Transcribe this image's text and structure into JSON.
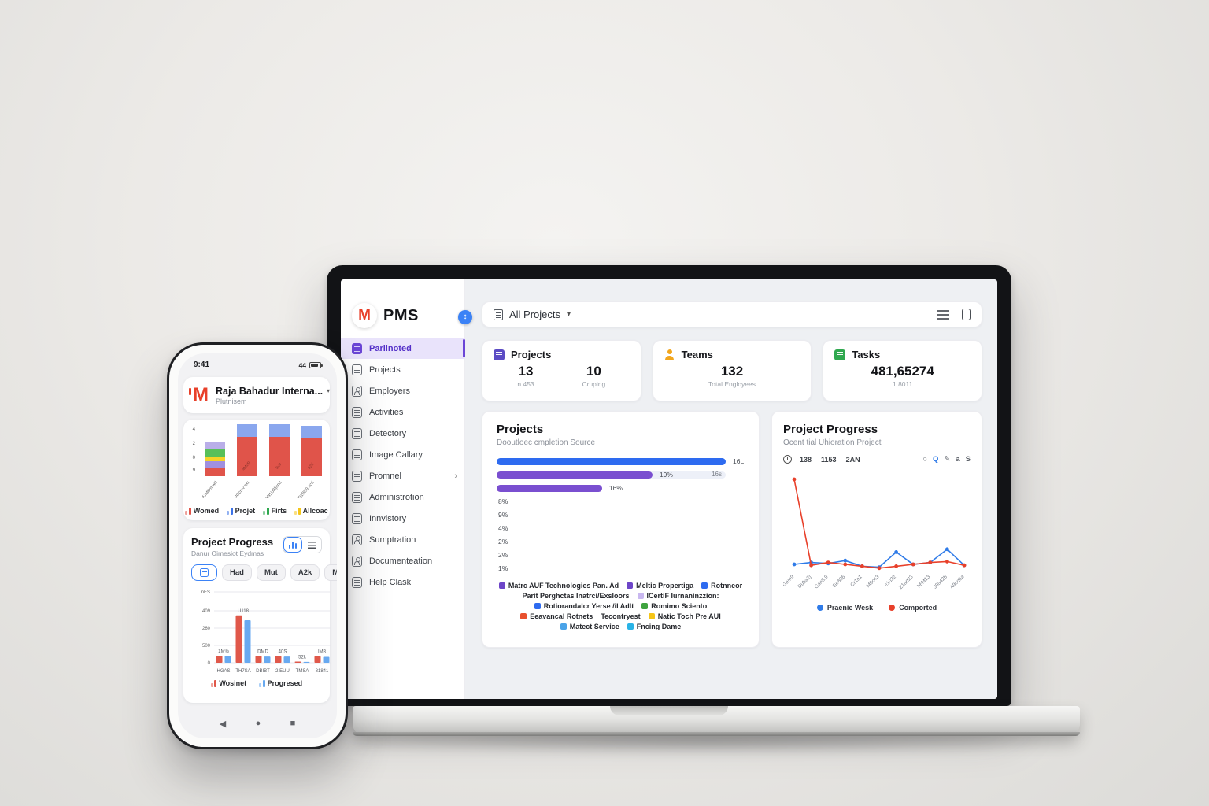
{
  "laptop": {
    "logo": {
      "brand": "PMS",
      "mark": "M"
    },
    "collapse_glyph": "↕",
    "sidebar_items": [
      {
        "icon": "doc",
        "label": "Parilnoted",
        "active": true
      },
      {
        "icon": "doc",
        "label": "Projects"
      },
      {
        "icon": "person",
        "label": "Employers"
      },
      {
        "icon": "doc",
        "label": "Activities"
      },
      {
        "icon": "doc",
        "label": "Detectory"
      },
      {
        "icon": "doc",
        "label": "Image Callary"
      },
      {
        "icon": "doc",
        "label": "Promnel",
        "chevron": "›"
      },
      {
        "icon": "doc",
        "label": "Administrotion"
      },
      {
        "icon": "doc",
        "label": "Innvistory"
      },
      {
        "icon": "person",
        "label": "Sumptration"
      },
      {
        "icon": "person",
        "label": "Documenteation"
      },
      {
        "icon": "doc",
        "label": "Help Clask"
      }
    ],
    "topbar": {
      "project_selector": "All Projects",
      "chevron": "▾"
    },
    "stat_cards": [
      {
        "title": "Projects",
        "icon": "doc",
        "icon_color": "#5b4bc4",
        "cols": [
          {
            "value": "13",
            "sub": "n 453"
          },
          {
            "value": "10",
            "sub": "Cruping"
          }
        ]
      },
      {
        "title": "Teams",
        "icon": "person",
        "icon_color": "#f2a61d",
        "cols": [
          {
            "value": "132",
            "sub": "Total Engloyees"
          }
        ]
      },
      {
        "title": "Tasks",
        "icon": "doc",
        "icon_color": "#2fa84f",
        "cols": [
          {
            "value": "481,65274",
            "sub": "1 8011"
          }
        ]
      }
    ],
    "projects_card": {
      "title": "Projects",
      "subtitle": "Dooutloec cmpletion Source"
    },
    "progress_card": {
      "title": "Project Progress",
      "subtitle": "Ocent tial Uhioration Project",
      "stats": [
        "138",
        "1153",
        "2AN"
      ],
      "toolbar": [
        {
          "name": "circle-icon",
          "glyph": "○"
        },
        {
          "name": "zoom-icon",
          "glyph": "Q",
          "color": "#2f7be8"
        },
        {
          "name": "pencil-icon",
          "glyph": "✎"
        },
        {
          "name": "a-icon",
          "glyph": "a"
        },
        {
          "name": "s-icon",
          "glyph": "S"
        }
      ]
    }
  },
  "phone": {
    "status": {
      "time": "9:41",
      "signal": "44"
    },
    "header": {
      "mark": "M",
      "title": "Raja Bahadur Interna...",
      "chevron": "▾",
      "subtitle": "Plutnisem"
    },
    "progress_section": {
      "title": "Project Progress",
      "subtitle": "Danur Oimesiot Eydmas",
      "chips": [
        "Had",
        "Mut",
        "A2k",
        "Min"
      ]
    },
    "nav": {
      "back": "◀",
      "home": "●",
      "recent": "■"
    }
  },
  "chart_data": [
    {
      "id": "laptop_projects_bars",
      "type": "bar",
      "orientation": "horizontal",
      "title": "Projects",
      "subtitle": "Dooutloec cmpletion Source",
      "xlim": [
        0,
        100
      ],
      "bars": [
        {
          "label": "16L",
          "value": 100,
          "color": "#2e6bf0"
        },
        {
          "label": "19%",
          "value": 68,
          "color": "#7a4fd0",
          "track": true,
          "track_label": "16s"
        },
        {
          "label": "16%",
          "value": 46,
          "color": "#7a4fd0"
        },
        {
          "label": "8%",
          "value": 0,
          "color": "#7a4fd0"
        },
        {
          "label": "9%",
          "value": 0,
          "color": "#7a4fd0"
        },
        {
          "label": "4%",
          "value": 0,
          "color": "#7a4fd0"
        },
        {
          "label": "2%",
          "value": 0,
          "color": "#7a4fd0"
        },
        {
          "label": "2%",
          "value": 0,
          "color": "#7a4fd0"
        },
        {
          "label": "1%",
          "value": 0,
          "color": "#7a4fd0"
        }
      ],
      "legend": [
        {
          "color": "#6d45c8",
          "label": "Matrc AUF Technologies Pan. Ad"
        },
        {
          "color": "#6d45c8",
          "label": "Meltic Propertiga"
        },
        {
          "color": "#2e6bf0",
          "label": "Rotnneor"
        },
        {
          "color": null,
          "label": "Parit Perghctas Inatrci/Exsloors"
        },
        {
          "color": "#c9b8f0",
          "label": "ICertiF Iurnaninzzion:"
        },
        {
          "color": "#2e6bf0",
          "label": "Rotiorandalcr Yerse /il Adlt"
        },
        {
          "color": "#3fa33f",
          "label": "Romimo Sciento"
        },
        {
          "color": "#e8502e",
          "label": "Eeavancal Rotnets"
        },
        {
          "color": null,
          "label": "Tecontryest"
        },
        {
          "color": "#f5c518",
          "label": "Natic Toch Pre AUI"
        },
        {
          "color": "#4aa3e8",
          "label": "Matect Service"
        },
        {
          "color": "#29b3e6",
          "label": "Fncing Dame"
        }
      ]
    },
    {
      "id": "laptop_progress_line",
      "type": "line",
      "title": "Project Progress",
      "categories": [
        "Gam9",
        "Duba2j",
        "Gan8.9",
        "Ge886",
        "Cr1a1",
        "M9c43",
        "e1u32",
        "Z1ad23",
        "h6M13",
        "J9a42b",
        "A9cq6a"
      ],
      "ylim": [
        0,
        100
      ],
      "legend_position": "bottom",
      "series": [
        {
          "name": "Praenie Wesk",
          "color": "#2f7be8",
          "values": [
            5,
            7,
            6,
            9,
            3,
            2,
            18,
            5,
            7,
            21,
            4
          ]
        },
        {
          "name": "Comported",
          "color": "#e8402a",
          "values": [
            95,
            4,
            7,
            5,
            3,
            1,
            3,
            5,
            7,
            8,
            4
          ]
        }
      ]
    },
    {
      "id": "phone_stacked_bars",
      "type": "bar",
      "subtype": "stacked",
      "categories": [
        "4JM8rmwd",
        "JGcrxv sxr",
        "IAN1U8ljand",
        "2Q1BE9 acd"
      ],
      "ytick_labels": [
        "4",
        "2",
        "0",
        "9"
      ],
      "bars": [
        {
          "label": "",
          "segments": [
            {
              "color": "#e0544a",
              "value": 10
            },
            {
              "color": "#a090e0",
              "value": 9
            },
            {
              "color": "#f5d327",
              "value": 6
            },
            {
              "color": "#58c05a",
              "value": 9
            },
            {
              "color": "#b9aee8",
              "value": 10
            }
          ]
        },
        {
          "label": "4M2R",
          "segments": [
            {
              "color": "#e0544a",
              "value": 50
            },
            {
              "color": "#8aa7ee",
              "value": 16
            }
          ]
        },
        {
          "label": "6u9",
          "segments": [
            {
              "color": "#e0544a",
              "value": 50
            },
            {
              "color": "#8aa7ee",
              "value": 16
            }
          ]
        },
        {
          "label": "62d",
          "segments": [
            {
              "color": "#e0544a",
              "value": 48
            },
            {
              "color": "#8aa7ee",
              "value": 16
            }
          ]
        }
      ],
      "legend": [
        {
          "label": "Womed",
          "color": "#e0544a"
        },
        {
          "label": "Projet",
          "color": "#3b72e8"
        },
        {
          "label": "Firts",
          "color": "#2ea84e"
        },
        {
          "label": "Allcoac",
          "color": "#f5c518"
        }
      ]
    },
    {
      "id": "phone_grouped_bars",
      "type": "bar",
      "subtype": "grouped",
      "categories": [
        "HGAS",
        "TH7SA",
        "DBIBT",
        "2 EUU",
        "TMSA",
        "81841"
      ],
      "ytick_labels": [
        "nES",
        "409",
        "260",
        "500",
        "0"
      ],
      "ymax": 500,
      "value_labels": [
        "1M%",
        "U118",
        "DMD",
        "40S",
        "52k",
        "IM3"
      ],
      "series": [
        {
          "name": "Wosinet",
          "color": "#e0584a",
          "values": [
            62,
            418,
            60,
            58,
            10,
            58
          ]
        },
        {
          "name": "Progresed",
          "color": "#68a9f0",
          "values": [
            60,
            375,
            55,
            55,
            8,
            52
          ]
        }
      ]
    }
  ]
}
